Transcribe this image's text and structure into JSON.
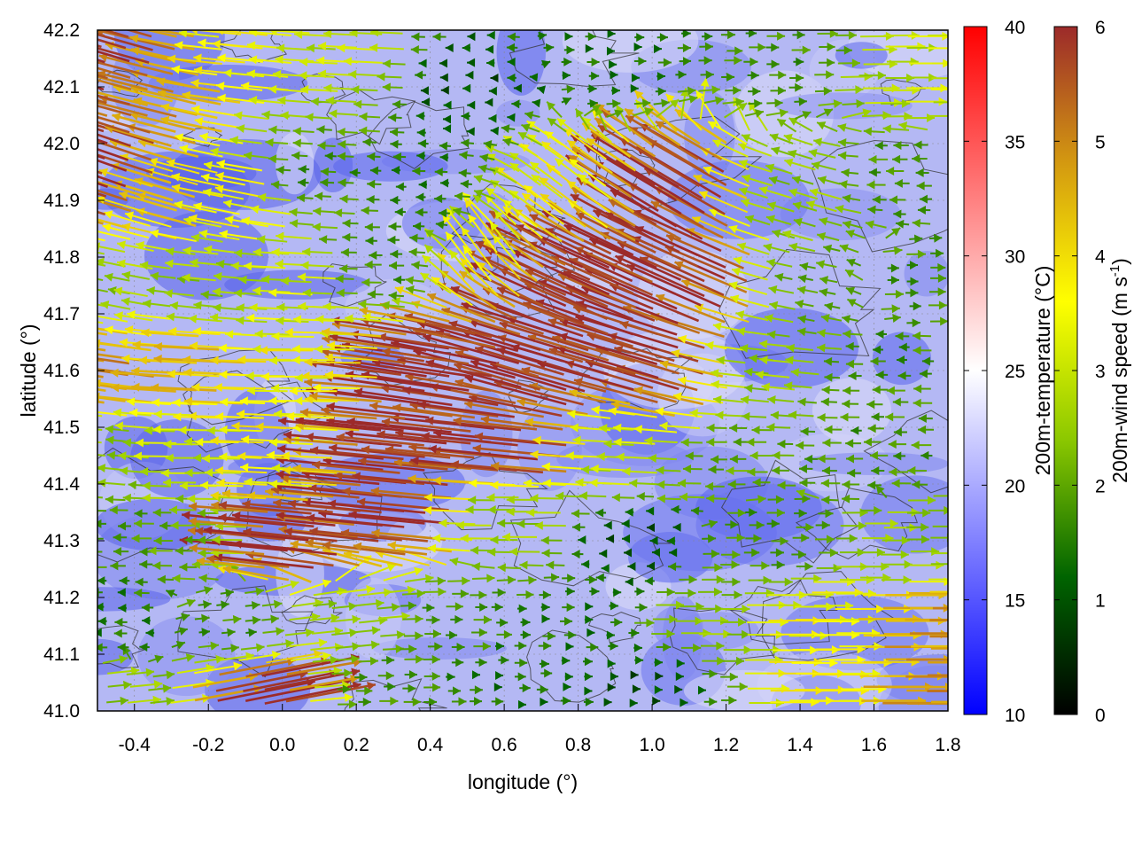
{
  "chart_data": {
    "type": "heatmap",
    "subtype": "wind-vector field over temperature map with terrain contours",
    "title": "",
    "xlabel": "longitude (°)",
    "ylabel": "latitude (°)",
    "xlim": [
      -0.5,
      1.8
    ],
    "ylim": [
      41.0,
      42.2
    ],
    "xticks": [
      -0.4,
      -0.2,
      0.0,
      0.2,
      0.4,
      0.6,
      0.8,
      1.0,
      1.2,
      1.4,
      1.6,
      1.8
    ],
    "xtick_labels": [
      "-0.4",
      "-0.2",
      "0.0",
      "0.2",
      "0.4",
      "0.6",
      "0.8",
      "1.0",
      "1.2",
      "1.4",
      "1.6",
      "1.8"
    ],
    "yticks": [
      41.0,
      41.1,
      41.2,
      41.3,
      41.4,
      41.5,
      41.6,
      41.7,
      41.8,
      41.9,
      42.0,
      42.1,
      42.2
    ],
    "ytick_labels": [
      "41.0",
      "41.1",
      "41.2",
      "41.3",
      "41.4",
      "41.5",
      "41.6",
      "41.7",
      "41.8",
      "41.9",
      "42.0",
      "42.1",
      "42.2"
    ],
    "grid": true,
    "temperature_colorbar": {
      "label": "200m-temperature (°C)",
      "range": [
        10,
        40
      ],
      "ticks": [
        10,
        15,
        20,
        25,
        30,
        35,
        40
      ],
      "tick_labels": [
        "10",
        "15",
        "20",
        "25",
        "30",
        "35",
        "40"
      ],
      "colors": [
        "#0000ff",
        "#ffffff",
        "#ff0000"
      ]
    },
    "wind_colorbar": {
      "label_main": "200m-wind speed (m s",
      "label_sup": "-1",
      "label_end": ")",
      "range": [
        0,
        6
      ],
      "ticks": [
        0,
        1,
        2,
        3,
        4,
        5,
        6
      ],
      "tick_labels": [
        "0",
        "1",
        "2",
        "3",
        "4",
        "5",
        "6"
      ],
      "colors": [
        "#000000",
        "#006400",
        "#8cc800",
        "#ffff00",
        "#d49a10",
        "#9c2a2a"
      ]
    },
    "temperature_field_approx": {
      "background_range": [
        14,
        23
      ],
      "note_cold_regions": [
        "west of 0.4 lon",
        "north near 0.7-0.9 lon 42.1"
      ]
    },
    "wind_vectors": [
      {
        "lon": -0.45,
        "lat": 42.15,
        "dir": [
          -1.0,
          0.3
        ],
        "speed": 6
      },
      {
        "lon": -0.3,
        "lat": 42.1,
        "dir": [
          -1.0,
          0.25
        ],
        "speed": 5
      },
      {
        "lon": -0.1,
        "lat": 42.15,
        "dir": [
          -1.0,
          0.1
        ],
        "speed": 4
      },
      {
        "lon": 0.2,
        "lat": 42.15,
        "dir": [
          -1.0,
          0.05
        ],
        "speed": 3.5
      },
      {
        "lon": 0.5,
        "lat": 42.1,
        "dir": [
          -1.0,
          0.0
        ],
        "speed": 1
      },
      {
        "lon": 0.9,
        "lat": 42.15,
        "dir": [
          1.0,
          0.0
        ],
        "speed": 1.5
      },
      {
        "lon": 1.3,
        "lat": 42.15,
        "dir": [
          1.0,
          0.0
        ],
        "speed": 2
      },
      {
        "lon": 1.7,
        "lat": 42.1,
        "dir": [
          1.0,
          0.0
        ],
        "speed": 3.5
      },
      {
        "lon": -0.45,
        "lat": 41.95,
        "dir": [
          -1.0,
          0.35
        ],
        "speed": 6
      },
      {
        "lon": -0.3,
        "lat": 41.9,
        "dir": [
          -1.0,
          0.3
        ],
        "speed": 4.5
      },
      {
        "lon": -0.1,
        "lat": 41.9,
        "dir": [
          -1.0,
          0.2
        ],
        "speed": 4
      },
      {
        "lon": 0.1,
        "lat": 41.95,
        "dir": [
          -1.0,
          0.05
        ],
        "speed": 2
      },
      {
        "lon": 0.4,
        "lat": 41.9,
        "dir": [
          -1.0,
          0.0
        ],
        "speed": 1.5
      },
      {
        "lon": 0.8,
        "lat": 41.9,
        "dir": [
          -0.8,
          0.6
        ],
        "speed": 4
      },
      {
        "lon": 1.1,
        "lat": 41.9,
        "dir": [
          -1.0,
          0.6
        ],
        "speed": 6
      },
      {
        "lon": 1.4,
        "lat": 41.9,
        "dir": [
          -1.0,
          0.3
        ],
        "speed": 3
      },
      {
        "lon": 1.7,
        "lat": 41.95,
        "dir": [
          -1.0,
          0.0
        ],
        "speed": 2
      },
      {
        "lon": -0.45,
        "lat": 41.75,
        "dir": [
          -1.0,
          0.2
        ],
        "speed": 3
      },
      {
        "lon": -0.2,
        "lat": 41.75,
        "dir": [
          -1.0,
          0.1
        ],
        "speed": 3
      },
      {
        "lon": 0.05,
        "lat": 41.75,
        "dir": [
          -1.0,
          0.05
        ],
        "speed": 3.5
      },
      {
        "lon": 0.3,
        "lat": 41.8,
        "dir": [
          -1.0,
          0.0
        ],
        "speed": 2
      },
      {
        "lon": 0.55,
        "lat": 41.8,
        "dir": [
          -0.6,
          0.8
        ],
        "speed": 4
      },
      {
        "lon": 0.85,
        "lat": 41.75,
        "dir": [
          -1.0,
          0.45
        ],
        "speed": 6
      },
      {
        "lon": 1.15,
        "lat": 41.75,
        "dir": [
          -1.0,
          0.45
        ],
        "speed": 6
      },
      {
        "lon": 1.45,
        "lat": 41.75,
        "dir": [
          -1.0,
          0.2
        ],
        "speed": 2.5
      },
      {
        "lon": 1.7,
        "lat": 41.75,
        "dir": [
          1.0,
          0.0
        ],
        "speed": 2
      },
      {
        "lon": -0.45,
        "lat": 41.6,
        "dir": [
          -1.0,
          0.15
        ],
        "speed": 5
      },
      {
        "lon": -0.2,
        "lat": 41.6,
        "dir": [
          -1.0,
          0.05
        ],
        "speed": 4.5
      },
      {
        "lon": 0.1,
        "lat": 41.6,
        "dir": [
          -1.0,
          0.0
        ],
        "speed": 4
      },
      {
        "lon": 0.45,
        "lat": 41.6,
        "dir": [
          -1.0,
          0.15
        ],
        "speed": 6
      },
      {
        "lon": 0.75,
        "lat": 41.6,
        "dir": [
          -1.0,
          0.3
        ],
        "speed": 6
      },
      {
        "lon": 1.05,
        "lat": 41.6,
        "dir": [
          -1.0,
          0.3
        ],
        "speed": 6
      },
      {
        "lon": 1.35,
        "lat": 41.6,
        "dir": [
          -1.0,
          0.1
        ],
        "speed": 3
      },
      {
        "lon": 1.65,
        "lat": 41.6,
        "dir": [
          -1.0,
          0.0
        ],
        "speed": 2
      },
      {
        "lon": -0.45,
        "lat": 41.45,
        "dir": [
          -1.0,
          0.1
        ],
        "speed": 3
      },
      {
        "lon": -0.2,
        "lat": 41.45,
        "dir": [
          -1.0,
          0.0
        ],
        "speed": 3.5
      },
      {
        "lon": 0.05,
        "lat": 41.45,
        "dir": [
          -1.0,
          0.05
        ],
        "speed": 4
      },
      {
        "lon": 0.35,
        "lat": 41.45,
        "dir": [
          -1.0,
          0.1
        ],
        "speed": 6
      },
      {
        "lon": 0.65,
        "lat": 41.45,
        "dir": [
          -1.0,
          0.1
        ],
        "speed": 6
      },
      {
        "lon": 0.95,
        "lat": 41.45,
        "dir": [
          -1.0,
          0.05
        ],
        "speed": 3.5
      },
      {
        "lon": 1.25,
        "lat": 41.45,
        "dir": [
          -1.0,
          0.0
        ],
        "speed": 2.5
      },
      {
        "lon": 1.6,
        "lat": 41.45,
        "dir": [
          -1.0,
          0.0
        ],
        "speed": 2
      },
      {
        "lon": -0.45,
        "lat": 41.3,
        "dir": [
          -1.0,
          0.0
        ],
        "speed": 2
      },
      {
        "lon": -0.2,
        "lat": 41.3,
        "dir": [
          -1.0,
          0.0
        ],
        "speed": 2.5
      },
      {
        "lon": 0.05,
        "lat": 41.3,
        "dir": [
          -1.0,
          0.1
        ],
        "speed": 6
      },
      {
        "lon": 0.35,
        "lat": 41.35,
        "dir": [
          -1.0,
          0.1
        ],
        "speed": 6
      },
      {
        "lon": 0.65,
        "lat": 41.35,
        "dir": [
          -1.0,
          0.0
        ],
        "speed": 3
      },
      {
        "lon": 0.95,
        "lat": 41.3,
        "dir": [
          -1.0,
          0.0
        ],
        "speed": 1
      },
      {
        "lon": 1.3,
        "lat": 41.3,
        "dir": [
          1.0,
          0.0
        ],
        "speed": 2
      },
      {
        "lon": 1.65,
        "lat": 41.3,
        "dir": [
          1.0,
          0.0
        ],
        "speed": 3
      },
      {
        "lon": -0.45,
        "lat": 41.15,
        "dir": [
          -1.0,
          0.0
        ],
        "speed": 1.5
      },
      {
        "lon": -0.15,
        "lat": 41.15,
        "dir": [
          1.0,
          0.1
        ],
        "speed": 2
      },
      {
        "lon": 0.15,
        "lat": 41.15,
        "dir": [
          1.0,
          0.1
        ],
        "speed": 3
      },
      {
        "lon": 0.45,
        "lat": 41.15,
        "dir": [
          1.0,
          0.0
        ],
        "speed": 2
      },
      {
        "lon": 0.8,
        "lat": 41.15,
        "dir": [
          1.0,
          0.0
        ],
        "speed": 1.5
      },
      {
        "lon": 1.1,
        "lat": 41.15,
        "dir": [
          1.0,
          0.0
        ],
        "speed": 3
      },
      {
        "lon": 1.4,
        "lat": 41.15,
        "dir": [
          1.0,
          0.0
        ],
        "speed": 4
      },
      {
        "lon": 1.7,
        "lat": 41.15,
        "dir": [
          1.0,
          0.0
        ],
        "speed": 5
      },
      {
        "lon": -0.45,
        "lat": 41.03,
        "dir": [
          1.0,
          0.1
        ],
        "speed": 3
      },
      {
        "lon": -0.1,
        "lat": 41.03,
        "dir": [
          1.0,
          0.2
        ],
        "speed": 6
      },
      {
        "lon": 0.25,
        "lat": 41.03,
        "dir": [
          1.0,
          0.0
        ],
        "speed": 2
      },
      {
        "lon": 0.6,
        "lat": 41.05,
        "dir": [
          1.0,
          0.0
        ],
        "speed": 1.5
      },
      {
        "lon": 1.0,
        "lat": 41.05,
        "dir": [
          1.0,
          0.0
        ],
        "speed": 1
      },
      {
        "lon": 1.4,
        "lat": 41.05,
        "dir": [
          1.0,
          0.0
        ],
        "speed": 4
      },
      {
        "lon": 1.7,
        "lat": 41.05,
        "dir": [
          1.0,
          0.0
        ],
        "speed": 5
      }
    ]
  }
}
